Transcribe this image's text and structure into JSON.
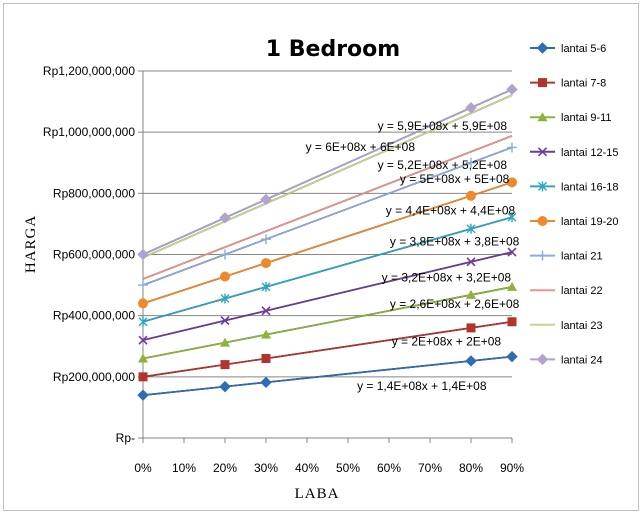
{
  "chart_data": {
    "type": "line",
    "title": "1 Bedroom",
    "xlabel": "LABA",
    "ylabel": "HARGA",
    "x": [
      0,
      0.2,
      0.3,
      0.8,
      0.9
    ],
    "xlim": [
      0,
      0.9
    ],
    "xticks": [
      0,
      0.1,
      0.2,
      0.3,
      0.4,
      0.5,
      0.6,
      0.7,
      0.8,
      0.9
    ],
    "xtick_labels": [
      "0%",
      "10%",
      "20%",
      "30%",
      "40%",
      "50%",
      "60%",
      "70%",
      "80%",
      "90%"
    ],
    "ylim": [
      0,
      1200000000
    ],
    "yticks": [
      0,
      200000000,
      400000000,
      600000000,
      800000000,
      1000000000,
      1200000000
    ],
    "ytick_labels": [
      "Rp-",
      "Rp200,000,000",
      "Rp400,000,000",
      "Rp600,000,000",
      "Rp800,000,000",
      "Rp1,000,000,000",
      "Rp1,200,000,000"
    ],
    "grid": "horizontal",
    "legend_position": "right",
    "series": [
      {
        "name": "lantai 5-6",
        "color": "#2e6db3",
        "marker": "diamond",
        "values": [
          140000000,
          168000000,
          182000000,
          252000000,
          266000000
        ]
      },
      {
        "name": "lantai 7-8",
        "color": "#b2342e",
        "marker": "square",
        "values": [
          200000000,
          240000000,
          260000000,
          360000000,
          380000000
        ]
      },
      {
        "name": "lantai 9-11",
        "color": "#8db33a",
        "marker": "triangle",
        "values": [
          260000000,
          312000000,
          338000000,
          468000000,
          494000000
        ]
      },
      {
        "name": "lantai 12-15",
        "color": "#6a3d9a",
        "marker": "x",
        "values": [
          320000000,
          384000000,
          416000000,
          576000000,
          608000000
        ]
      },
      {
        "name": "lantai 16-18",
        "color": "#2aa6c4",
        "marker": "star",
        "values": [
          380000000,
          456000000,
          494000000,
          684000000,
          722000000
        ]
      },
      {
        "name": "lantai 19-20",
        "color": "#ef8a2c",
        "marker": "circle",
        "values": [
          440000000,
          528000000,
          572000000,
          792000000,
          836000000
        ]
      },
      {
        "name": "lantai 21",
        "color": "#8eaad8",
        "marker": "plus",
        "values": [
          500000000,
          600000000,
          650000000,
          900000000,
          950000000
        ]
      },
      {
        "name": "lantai 22",
        "color": "#e8958f",
        "marker": "none",
        "values": [
          520000000,
          624000000,
          676000000,
          936000000,
          988000000
        ]
      },
      {
        "name": "lantai 23",
        "color": "#c2d98c",
        "marker": "none",
        "values": [
          590000000,
          708000000,
          767000000,
          1062000000,
          1121000000
        ]
      },
      {
        "name": "lantai 24",
        "color": "#b1a2d0",
        "marker": "diamond",
        "values": [
          600000000,
          720000000,
          780000000,
          1080000000,
          1140000000
        ]
      }
    ],
    "trendlines": [
      {
        "label": "y = 1,4E+08x + 1,4E+08",
        "intercept": 140000000,
        "slope": 140000000
      },
      {
        "label": "y = 2E+08x + 2E+08",
        "intercept": 200000000,
        "slope": 200000000
      },
      {
        "label": "y = 2,6E+08x + 2,6E+08",
        "intercept": 260000000,
        "slope": 260000000
      },
      {
        "label": "y = 3,2E+08x + 3,2E+08",
        "intercept": 320000000,
        "slope": 320000000
      },
      {
        "label": "y = 3,8E+08x + 3,8E+08",
        "intercept": 380000000,
        "slope": 380000000
      },
      {
        "label": "y = 4,4E+08x + 4,4E+08",
        "intercept": 440000000,
        "slope": 440000000
      },
      {
        "label": "y = 5E+08x + 5E+08",
        "intercept": 500000000,
        "slope": 500000000
      },
      {
        "label": "y = 5,2E+08x + 5,2E+08",
        "intercept": 520000000,
        "slope": 520000000
      },
      {
        "label": "y = 5,9E+08x + 5,9E+08",
        "intercept": 590000000,
        "slope": 590000000
      },
      {
        "label": "y = 6E+08x + 6E+08",
        "intercept": 600000000,
        "slope": 600000000
      }
    ]
  }
}
